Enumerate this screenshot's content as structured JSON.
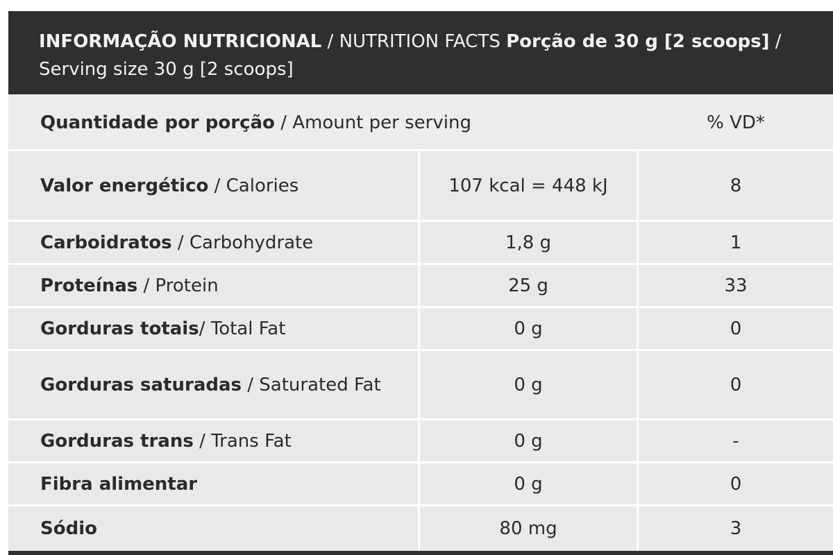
{
  "header": {
    "title_pt": "INFORMAÇÃO NUTRICIONAL",
    "title_en": " / NUTRITION FACTS ",
    "serving_pt": "Porção de 30 g [2 scoops]",
    "serving_en": " / Serving size 30 g [2 scoops]"
  },
  "subheader": {
    "amount_pt": "Quantidade por porção",
    "amount_en": " / Amount per serving",
    "dv_label": "% VD*"
  },
  "rows": [
    {
      "name_pt": "Valor energético",
      "name_en": " / Calories",
      "amount": "107 kcal = 448 kJ",
      "dv": "8"
    },
    {
      "name_pt": "Carboidratos",
      "name_en": " / Carbohydrate",
      "amount": "1,8 g",
      "dv": "1"
    },
    {
      "name_pt": "Proteínas",
      "name_en": " / Protein",
      "amount": "25 g",
      "dv": "33"
    },
    {
      "name_pt": "Gorduras totais",
      "name_en": "/ Total Fat",
      "amount": "0 g",
      "dv": "0"
    },
    {
      "name_pt": "Gorduras saturadas",
      "name_en": " / Saturated Fat",
      "amount": "0 g",
      "dv": "0"
    },
    {
      "name_pt": "Gorduras trans",
      "name_en": " / Trans Fat",
      "amount": "0 g",
      "dv": "-"
    },
    {
      "name_pt": "Fibra alimentar",
      "name_en": "",
      "amount": "0 g",
      "dv": "0"
    },
    {
      "name_pt": "Sódio",
      "name_en": "",
      "amount": "80 mg",
      "dv": "3"
    }
  ]
}
